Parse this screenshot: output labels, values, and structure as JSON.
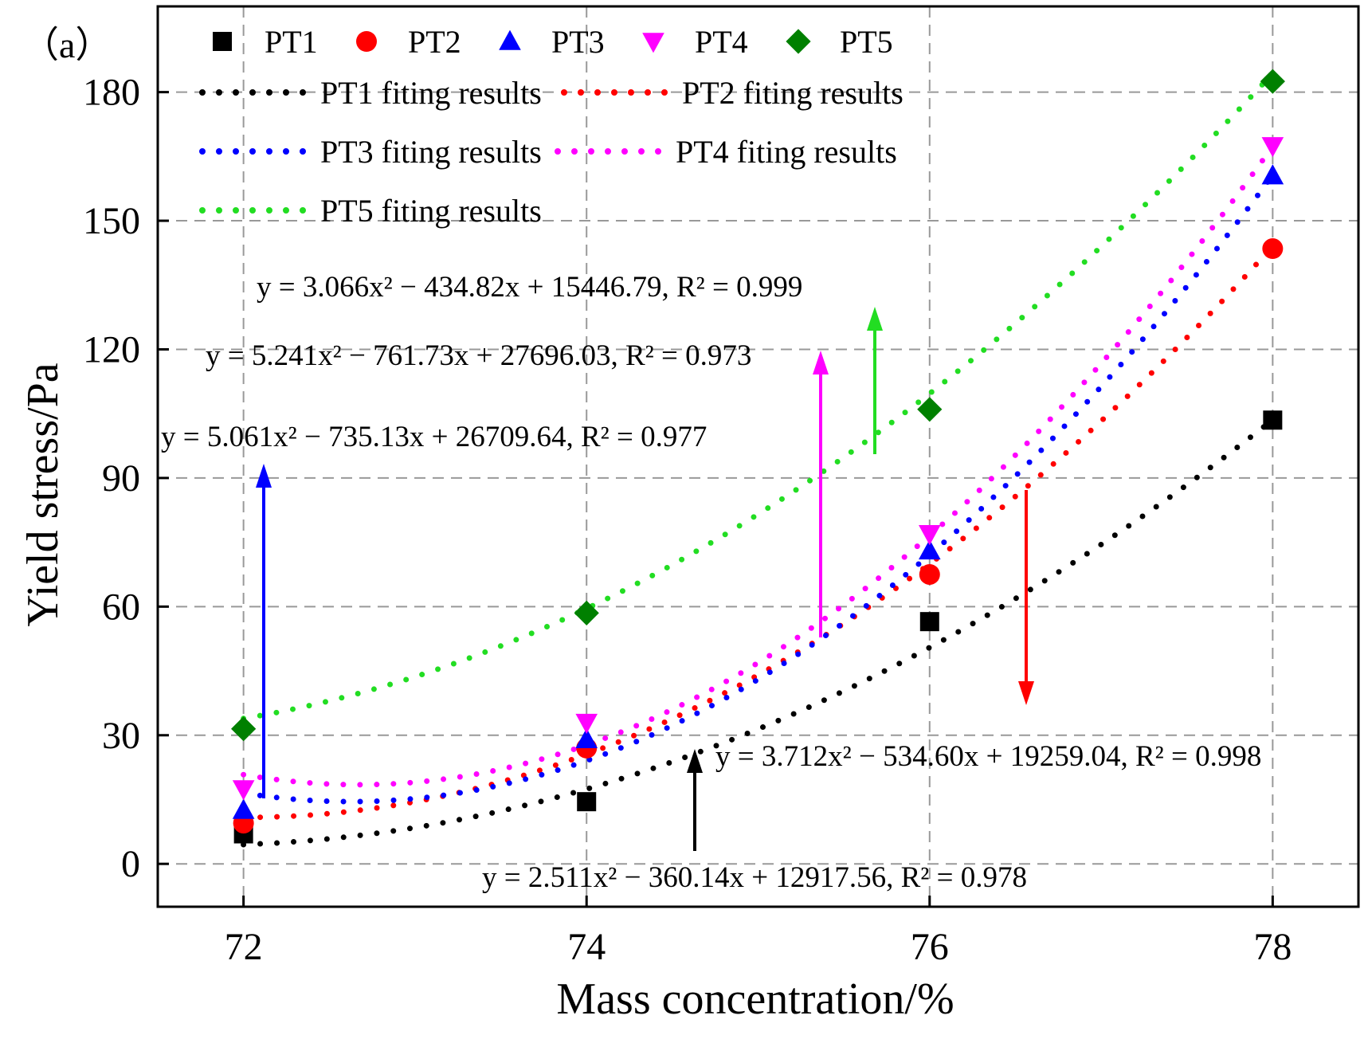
{
  "chart_data": {
    "type": "scatter",
    "panel_label": "（a）",
    "xlabel": "Mass concentration/%",
    "ylabel": "Yield stress/Pa",
    "xlim": [
      71.5,
      78.5
    ],
    "ylim": [
      -10,
      200
    ],
    "x_ticks": [
      72,
      74,
      76,
      78
    ],
    "y_ticks": [
      0,
      30,
      60,
      90,
      120,
      150,
      180
    ],
    "grid": true,
    "legend_position": "top-left",
    "x": [
      72,
      74,
      76,
      78
    ],
    "series": [
      {
        "name": "PT1",
        "marker": "square",
        "color": "#000000",
        "values": [
          7,
          14.5,
          56.5,
          103.5
        ]
      },
      {
        "name": "PT2",
        "marker": "circle",
        "color": "#ff0000",
        "values": [
          9.5,
          27,
          67.5,
          143.5
        ]
      },
      {
        "name": "PT3",
        "marker": "triangle-up",
        "color": "#0000ff",
        "values": [
          12.5,
          29,
          73,
          160.5
        ]
      },
      {
        "name": "PT4",
        "marker": "triangle-down",
        "color": "#ff00ff",
        "values": [
          17.5,
          33,
          77,
          167.5
        ]
      },
      {
        "name": "PT5",
        "marker": "diamond",
        "color": "#008000",
        "values": [
          31.5,
          58.5,
          106,
          182.5
        ]
      }
    ],
    "fits": [
      {
        "name": "PT1 fiting results",
        "color": "#000000",
        "a": 2.511,
        "b": -360.14,
        "c": 12917.56,
        "equation": "y = 2.511x² − 360.14x + 12917.56, R² = 0.978"
      },
      {
        "name": "PT2 fiting results",
        "color": "#ff0000",
        "a": 3.712,
        "b": -534.6,
        "c": 19259.04,
        "equation": "y = 3.712x² − 534.60x + 19259.04, R² = 0.998"
      },
      {
        "name": "PT3 fiting results",
        "color": "#0000ff",
        "a": 5.061,
        "b": -735.13,
        "c": 26709.64,
        "equation": "y = 5.061x² − 735.13x + 26709.64, R² = 0.977"
      },
      {
        "name": "PT4 fiting results",
        "color": "#ff00ff",
        "a": 5.241,
        "b": -761.73,
        "c": 27696.03,
        "equation": "y = 5.241x² − 761.73x + 27696.03, R² = 0.973"
      },
      {
        "name": "PT5 fiting results",
        "color": "#22dd22",
        "a": 3.066,
        "b": -434.82,
        "c": 15446.79,
        "equation": "y = 3.066x² − 434.82x + 15446.79, R² = 0.999"
      }
    ]
  }
}
